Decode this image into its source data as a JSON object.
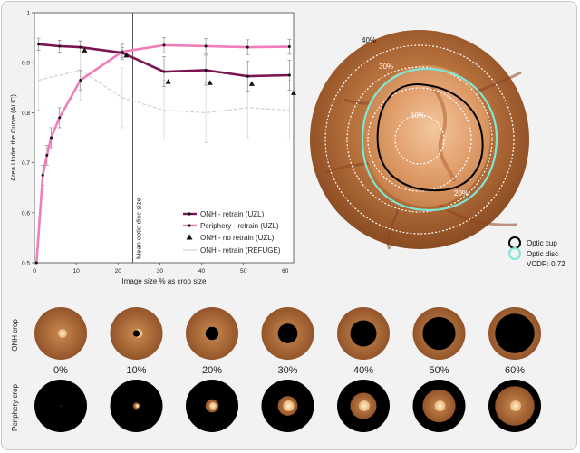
{
  "chart_data": {
    "type": "line",
    "xlabel": "Image size % as crop size",
    "ylabel": "Area Under the Curve (AUC)",
    "xlim": [
      0,
      62
    ],
    "ylim": [
      0.5,
      1.0
    ],
    "x_ticks": [
      "0",
      "10",
      "20",
      "30",
      "40",
      "50",
      "60"
    ],
    "y_ticks": [
      "0.5",
      "0.6",
      "0.7",
      "0.8",
      "0.9",
      "1"
    ],
    "vline": {
      "x": 23.5,
      "label": "Mean optic disc size"
    },
    "legend_position": "bottom-right",
    "series": [
      {
        "name": "ONH - retrain (UZL)",
        "color": "#7b1450",
        "x": [
          1,
          6,
          11,
          21,
          31,
          41,
          51,
          61
        ],
        "y": [
          0.937,
          0.933,
          0.931,
          0.92,
          0.882,
          0.885,
          0.873,
          0.875
        ],
        "err": [
          0.012,
          0.012,
          0.012,
          0.01,
          0.03,
          0.03,
          0.03,
          0.03
        ]
      },
      {
        "name": "Periphery - retrain (UZL)",
        "color": "#f07cba",
        "x": [
          0.5,
          2,
          3,
          4,
          6,
          11,
          21,
          31,
          41,
          51,
          61
        ],
        "y": [
          0.5,
          0.675,
          0.715,
          0.75,
          0.79,
          0.865,
          0.922,
          0.935,
          0.933,
          0.931,
          0.932
        ],
        "err": [
          0.0,
          0.02,
          0.02,
          0.02,
          0.02,
          0.02,
          0.015,
          0.015,
          0.015,
          0.015,
          0.015
        ]
      },
      {
        "name": "ONH - no retrain (UZL)",
        "color": "#111111",
        "x": [
          12,
          22,
          32,
          42,
          52,
          62
        ],
        "y": [
          0.925,
          0.915,
          0.862,
          0.86,
          0.858,
          0.84
        ]
      },
      {
        "name": "ONH - retrain (REFUGE)",
        "color": "#cfcfcf",
        "x": [
          1,
          11,
          21,
          31,
          41,
          51,
          61
        ],
        "y": [
          0.865,
          0.885,
          0.83,
          0.805,
          0.8,
          0.81,
          0.805
        ],
        "err": [
          0.06,
          0.06,
          0.06,
          0.06,
          0.06,
          0.06,
          0.06
        ]
      }
    ]
  },
  "fundus": {
    "ring_labels": [
      "40%",
      "30%",
      "10%",
      "20%"
    ],
    "legend": [
      {
        "label": "Optic cup",
        "color": "#000000"
      },
      {
        "label": "Optic disc",
        "color": "#7fe6d6"
      }
    ],
    "vcdr": "VCDR: 0.72"
  },
  "crops": {
    "row_labels": [
      "ONH crop",
      "Periphery crop"
    ],
    "percents": [
      "0%",
      "10%",
      "20%",
      "30%",
      "40%",
      "50%",
      "60%"
    ],
    "fractions": [
      0,
      0.1,
      0.2,
      0.3,
      0.4,
      0.5,
      0.6
    ]
  }
}
